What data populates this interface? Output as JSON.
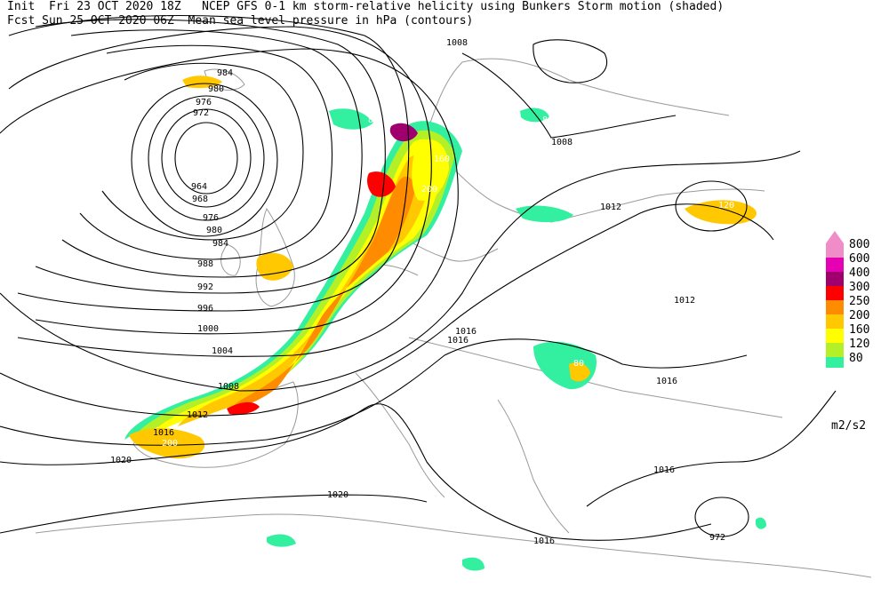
{
  "header": {
    "line1": "Init  Fri 23 OCT 2020 18Z   NCEP GFS 0-1 km storm-relative helicity using Bunkers Storm motion (shaded)",
    "line2": "Fcst Sun 25 OCT 2020 06Z  Mean sea level pressure in hPa (contours)"
  },
  "legend": {
    "units": "m2/s2",
    "levels": [
      {
        "label": "800",
        "color": "#f08cc8"
      },
      {
        "label": "600",
        "color": "#e600b4"
      },
      {
        "label": "400",
        "color": "#a0006e"
      },
      {
        "label": "300",
        "color": "#ff0000"
      },
      {
        "label": "250",
        "color": "#ff8c00"
      },
      {
        "label": "200",
        "color": "#ffc800"
      },
      {
        "label": "160",
        "color": "#ffff00"
      },
      {
        "label": "120",
        "color": "#b4f028"
      },
      {
        "label": "80",
        "color": "#32f0a0"
      }
    ]
  },
  "contours": {
    "low_pressure_labels": [
      "964",
      "968",
      "972",
      "976",
      "980",
      "984",
      "988",
      "992",
      "996",
      "1000",
      "1004",
      "1008",
      "1012",
      "1016",
      "1020"
    ],
    "other_labels": [
      "984",
      "980",
      "976",
      "972",
      "1008",
      "1012",
      "1016",
      "1016",
      "1016",
      "1016",
      "1012",
      "1008",
      "1020",
      "1016",
      "1020"
    ]
  },
  "field_labels": [
    "80",
    "120",
    "160",
    "200",
    "250",
    "300",
    "120",
    "80",
    "160",
    "200",
    "120",
    "80"
  ],
  "colors": {
    "contour": "#000000",
    "coast": "#9a9a9a",
    "background": "#ffffff"
  }
}
